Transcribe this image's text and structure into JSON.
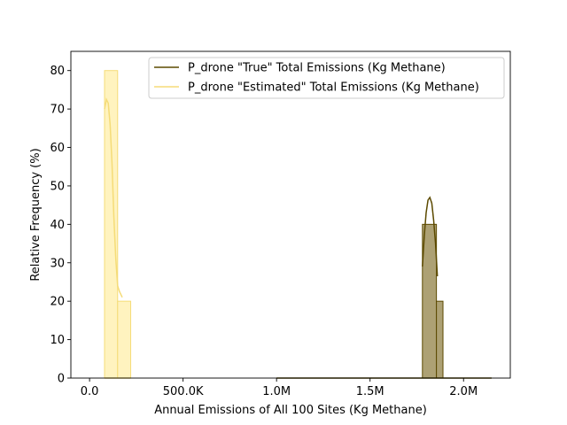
{
  "chart_data": {
    "type": "histogram",
    "xlabel": "Annual Emissions of All 100 Sites (Kg Methane)",
    "ylabel": "Relative Frequency (%)",
    "xlim": [
      -100000,
      2250000
    ],
    "ylim": [
      0,
      85
    ],
    "grid": false,
    "legend_position": "top-right",
    "x_ticks": [
      {
        "value": 0,
        "label": "0.0"
      },
      {
        "value": 500000,
        "label": "500.0K"
      },
      {
        "value": 1000000,
        "label": "1.0M"
      },
      {
        "value": 1500000,
        "label": "1.5M"
      },
      {
        "value": 2000000,
        "label": "2.0M"
      }
    ],
    "y_ticks": [
      {
        "value": 0,
        "label": "0"
      },
      {
        "value": 10,
        "label": "10"
      },
      {
        "value": 20,
        "label": "20"
      },
      {
        "value": 30,
        "label": "30"
      },
      {
        "value": 40,
        "label": "40"
      },
      {
        "value": 50,
        "label": "50"
      },
      {
        "value": 60,
        "label": "60"
      },
      {
        "value": 70,
        "label": "70"
      },
      {
        "value": 80,
        "label": "80"
      }
    ],
    "series": [
      {
        "name": "P_drone \"True\" Total Emissions (Kg Methane)",
        "color": "#5c4a00",
        "fill": "#ada174",
        "bins": [
          {
            "x0": 1780000,
            "x1": 1855000,
            "value": 40
          },
          {
            "x0": 1855000,
            "x1": 1890000,
            "value": 20
          }
        ],
        "kde": [
          [
            1780000,
            29
          ],
          [
            1790000,
            37
          ],
          [
            1800000,
            43
          ],
          [
            1810000,
            46.3
          ],
          [
            1820000,
            47
          ],
          [
            1830000,
            45.5
          ],
          [
            1840000,
            41
          ],
          [
            1850000,
            35
          ],
          [
            1860000,
            26.5
          ]
        ],
        "baseline": [
          1000000,
          2150000
        ]
      },
      {
        "name": "P_drone \"Estimated\" Total Emissions (Kg Methane)",
        "color": "#f5dc78",
        "fill": "#fff3bf",
        "bins": [
          {
            "x0": 80000,
            "x1": 150000,
            "value": 80
          },
          {
            "x0": 150000,
            "x1": 220000,
            "value": 20
          }
        ],
        "kde": [
          [
            80000,
            70
          ],
          [
            90000,
            72.5
          ],
          [
            100000,
            71.5
          ],
          [
            110000,
            66
          ],
          [
            120000,
            56
          ],
          [
            130000,
            42
          ],
          [
            140000,
            31
          ],
          [
            150000,
            24
          ],
          [
            160000,
            22.5
          ],
          [
            175000,
            21
          ]
        ],
        "baseline": [
          80000,
          220000
        ]
      }
    ]
  }
}
